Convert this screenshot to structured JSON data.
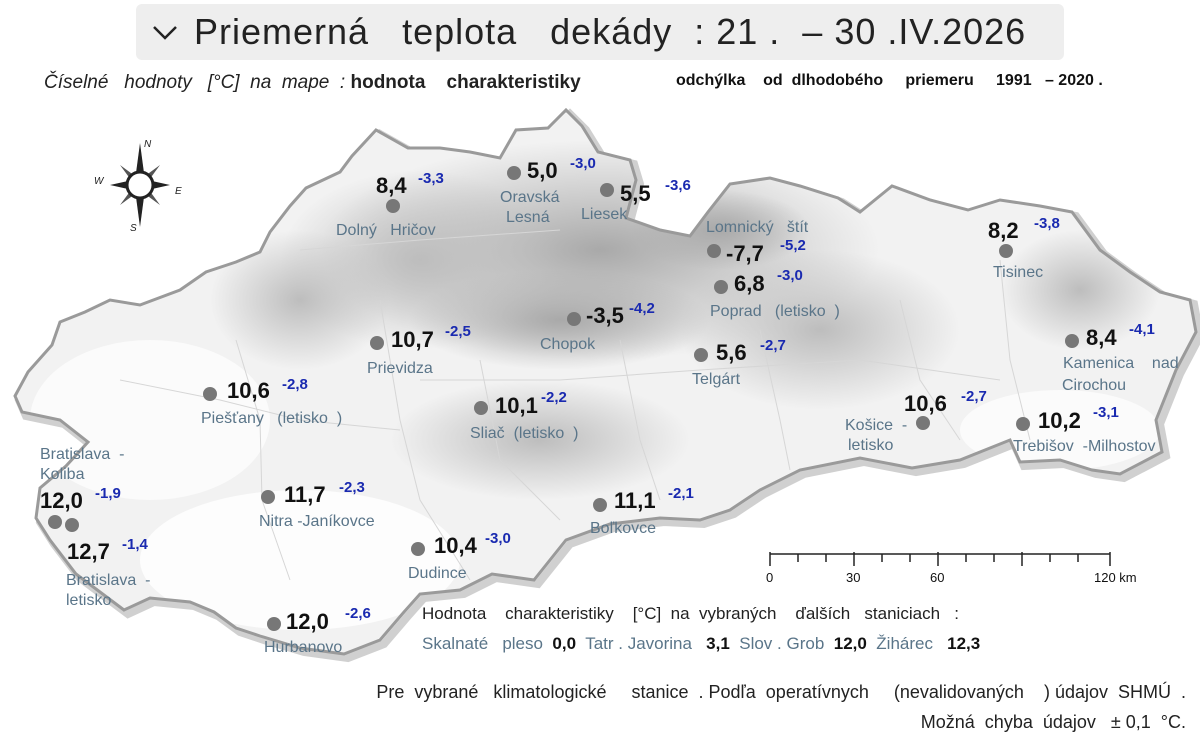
{
  "header": {
    "title": "Priemerná   teplota   dekády  : 21 .  – 30 .IV.2026",
    "subtitle_lead": "Číselné   hodnoty   [°C]  na  mape  : ",
    "subtitle_bold": "hodnota    charakteristiky",
    "subtitle_right": "odchýlka    od  dlhodobého     priemeru     1991   – 2020 ."
  },
  "compass": {
    "n": "N",
    "s": "S",
    "e": "E",
    "w": "W"
  },
  "stations": [
    {
      "name": "Dolný   Hričov",
      "value": "8,4",
      "dev": "-3,3"
    },
    {
      "name": "Oravská",
      "name2": "Lesná",
      "value": "5,0",
      "dev": "-3,0"
    },
    {
      "name": "Liesek",
      "value": "5,5",
      "dev": "-3,6"
    },
    {
      "name": "Lomnický   štít",
      "value": "-7,7",
      "dev": "-5,2"
    },
    {
      "name": "Poprad   (letisko  )",
      "value": "6,8",
      "dev": "-3,0"
    },
    {
      "name": "Tisinec",
      "value": "8,2",
      "dev": "-3,8"
    },
    {
      "name": "Kamenica    nad",
      "name2": "Cirochou",
      "value": "8,4",
      "dev": "-4,1"
    },
    {
      "name": "Chopok",
      "value": "-3,5",
      "dev": "-4,2"
    },
    {
      "name": "Prievidza",
      "value": "10,7",
      "dev": "-2,5"
    },
    {
      "name": "Telgárt",
      "value": "5,6",
      "dev": "-2,7"
    },
    {
      "name": "Piešťany   (letisko  )",
      "value": "10,6",
      "dev": "-2,8"
    },
    {
      "name": "Sliač  (letisko  )",
      "value": "10,1",
      "dev": "-2,2"
    },
    {
      "name": "Košice  -",
      "name2": "letisko",
      "value": "10,6",
      "dev": "-2,7"
    },
    {
      "name": "Trebišov  -Milhostov",
      "value": "10,2",
      "dev": "-3,1"
    },
    {
      "name": "Bratislava  -",
      "name2": "Koliba",
      "value": "12,0",
      "dev": "-1,9"
    },
    {
      "name": "Nitra -Janíkovce",
      "value": "11,7",
      "dev": "-2,3"
    },
    {
      "name": "Boľkovce",
      "value": "11,1",
      "dev": "-2,1"
    },
    {
      "name": "Bratislava  -",
      "name2": "letisko",
      "value": "12,7",
      "dev": "-1,4"
    },
    {
      "name": "Dudince",
      "value": "10,4",
      "dev": "-3,0"
    },
    {
      "name": "Hurbanovo",
      "value": "12,0",
      "dev": "-2,6"
    }
  ],
  "scale_bar": {
    "ticks": [
      "0",
      "30",
      "60",
      "120 km"
    ]
  },
  "extra": {
    "heading": "Hodnota    charakteristiky    [°C]  na  vybraných    ďalších   staniciach   :",
    "items": [
      {
        "name": "Skalnaté   pleso",
        "value": "0,0"
      },
      {
        "name": "Tatr . Javorina",
        "value": "3,1"
      },
      {
        "name": "Slov . Grob",
        "value": "12,0"
      },
      {
        "name": "Žihárec",
        "value": "12,3"
      }
    ]
  },
  "footer": {
    "line1": "Pre  vybrané   klimatologické     stanice  . Podľa  operatívnych     (nevalidovaných    ) údajov  SHMÚ  .",
    "line2": "Možná  chyba  údajov   ± 0,1  °C."
  },
  "colors": {
    "label": "#5a7589",
    "deviation": "#1a2ab0",
    "dot": "#777777",
    "border": "#9a9a9a"
  }
}
